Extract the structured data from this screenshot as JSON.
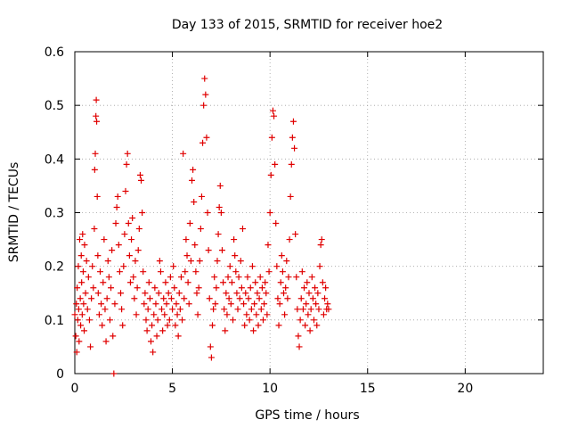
{
  "chart_data": {
    "type": "scatter",
    "title": "Day 133 of 2015, SRMTID for receiver hoe2",
    "xlabel": "GPS time / hours",
    "ylabel": "SRMTID / TECUs",
    "xlim": [
      0,
      24
    ],
    "ylim": [
      0,
      0.6
    ],
    "x_ticks": [
      "0",
      "5",
      "10",
      "15",
      "20"
    ],
    "y_ticks": [
      "0",
      "0.1",
      "0.2",
      "0.3",
      "0.4",
      "0.5",
      "0.6"
    ],
    "grid": true,
    "marker": "plus",
    "color": "#e00000",
    "series": [
      {
        "points": [
          [
            0.0,
            0.11
          ],
          [
            0.05,
            0.07
          ],
          [
            0.08,
            0.13
          ],
          [
            0.1,
            0.04
          ],
          [
            0.12,
            0.16
          ],
          [
            0.15,
            0.1
          ],
          [
            0.18,
            0.2
          ],
          [
            0.2,
            0.12
          ],
          [
            0.22,
            0.06
          ],
          [
            0.25,
            0.25
          ],
          [
            0.28,
            0.14
          ],
          [
            0.3,
            0.09
          ],
          [
            0.33,
            0.22
          ],
          [
            0.35,
            0.17
          ],
          [
            0.38,
            0.11
          ],
          [
            0.4,
            0.26
          ],
          [
            0.43,
            0.19
          ],
          [
            0.45,
            0.13
          ],
          [
            0.48,
            0.08
          ],
          [
            0.5,
            0.24
          ],
          [
            0.55,
            0.15
          ],
          [
            0.6,
            0.21
          ],
          [
            0.65,
            0.12
          ],
          [
            0.7,
            0.18
          ],
          [
            0.75,
            0.1
          ],
          [
            0.8,
            0.05
          ],
          [
            0.85,
            0.14
          ],
          [
            0.9,
            0.2
          ],
          [
            0.95,
            0.16
          ],
          [
            1.0,
            0.27
          ],
          [
            1.02,
            0.38
          ],
          [
            1.05,
            0.41
          ],
          [
            1.08,
            0.48
          ],
          [
            1.1,
            0.51
          ],
          [
            1.12,
            0.47
          ],
          [
            1.15,
            0.33
          ],
          [
            1.18,
            0.22
          ],
          [
            1.2,
            0.15
          ],
          [
            1.25,
            0.11
          ],
          [
            1.3,
            0.19
          ],
          [
            1.35,
            0.13
          ],
          [
            1.4,
            0.09
          ],
          [
            1.45,
            0.17
          ],
          [
            1.5,
            0.25
          ],
          [
            1.55,
            0.12
          ],
          [
            1.6,
            0.06
          ],
          [
            1.65,
            0.14
          ],
          [
            1.7,
            0.21
          ],
          [
            1.75,
            0.18
          ],
          [
            1.8,
            0.1
          ],
          [
            1.85,
            0.16
          ],
          [
            1.9,
            0.23
          ],
          [
            1.95,
            0.07
          ],
          [
            2.0,
            0.0
          ],
          [
            2.05,
            0.13
          ],
          [
            2.1,
            0.28
          ],
          [
            2.15,
            0.31
          ],
          [
            2.2,
            0.33
          ],
          [
            2.25,
            0.24
          ],
          [
            2.3,
            0.19
          ],
          [
            2.35,
            0.15
          ],
          [
            2.4,
            0.12
          ],
          [
            2.45,
            0.09
          ],
          [
            2.5,
            0.2
          ],
          [
            2.55,
            0.26
          ],
          [
            2.6,
            0.34
          ],
          [
            2.65,
            0.39
          ],
          [
            2.7,
            0.41
          ],
          [
            2.75,
            0.28
          ],
          [
            2.8,
            0.22
          ],
          [
            2.85,
            0.17
          ],
          [
            2.9,
            0.25
          ],
          [
            2.95,
            0.29
          ],
          [
            3.0,
            0.18
          ],
          [
            3.05,
            0.14
          ],
          [
            3.1,
            0.21
          ],
          [
            3.15,
            0.11
          ],
          [
            3.2,
            0.16
          ],
          [
            3.25,
            0.23
          ],
          [
            3.3,
            0.27
          ],
          [
            3.35,
            0.37
          ],
          [
            3.4,
            0.36
          ],
          [
            3.45,
            0.3
          ],
          [
            3.5,
            0.19
          ],
          [
            3.55,
            0.13
          ],
          [
            3.6,
            0.15
          ],
          [
            3.65,
            0.1
          ],
          [
            3.7,
            0.08
          ],
          [
            3.75,
            0.12
          ],
          [
            3.8,
            0.17
          ],
          [
            3.85,
            0.14
          ],
          [
            3.9,
            0.06
          ],
          [
            3.95,
            0.09
          ],
          [
            4.0,
            0.04
          ],
          [
            4.05,
            0.11
          ],
          [
            4.1,
            0.16
          ],
          [
            4.15,
            0.13
          ],
          [
            4.2,
            0.07
          ],
          [
            4.25,
            0.1
          ],
          [
            4.3,
            0.15
          ],
          [
            4.35,
            0.21
          ],
          [
            4.4,
            0.19
          ],
          [
            4.45,
            0.12
          ],
          [
            4.5,
            0.08
          ],
          [
            4.55,
            0.14
          ],
          [
            4.6,
            0.11
          ],
          [
            4.65,
            0.17
          ],
          [
            4.7,
            0.13
          ],
          [
            4.75,
            0.09
          ],
          [
            4.8,
            0.15
          ],
          [
            4.85,
            0.1
          ],
          [
            4.9,
            0.18
          ],
          [
            4.95,
            0.14
          ],
          [
            5.0,
            0.12
          ],
          [
            5.05,
            0.2
          ],
          [
            5.1,
            0.16
          ],
          [
            5.15,
            0.09
          ],
          [
            5.2,
            0.13
          ],
          [
            5.25,
            0.11
          ],
          [
            5.3,
            0.07
          ],
          [
            5.35,
            0.15
          ],
          [
            5.4,
            0.12
          ],
          [
            5.45,
            0.18
          ],
          [
            5.5,
            0.1
          ],
          [
            5.55,
            0.41
          ],
          [
            5.6,
            0.14
          ],
          [
            5.65,
            0.19
          ],
          [
            5.7,
            0.25
          ],
          [
            5.75,
            0.22
          ],
          [
            5.8,
            0.17
          ],
          [
            5.85,
            0.13
          ],
          [
            5.9,
            0.28
          ],
          [
            5.95,
            0.21
          ],
          [
            6.0,
            0.36
          ],
          [
            6.05,
            0.38
          ],
          [
            6.1,
            0.32
          ],
          [
            6.15,
            0.24
          ],
          [
            6.2,
            0.19
          ],
          [
            6.25,
            0.15
          ],
          [
            6.3,
            0.11
          ],
          [
            6.35,
            0.16
          ],
          [
            6.4,
            0.21
          ],
          [
            6.45,
            0.27
          ],
          [
            6.5,
            0.33
          ],
          [
            6.55,
            0.43
          ],
          [
            6.6,
            0.5
          ],
          [
            6.65,
            0.55
          ],
          [
            6.7,
            0.52
          ],
          [
            6.75,
            0.44
          ],
          [
            6.8,
            0.3
          ],
          [
            6.85,
            0.23
          ],
          [
            6.9,
            0.14
          ],
          [
            6.95,
            0.05
          ],
          [
            7.0,
            0.03
          ],
          [
            7.05,
            0.09
          ],
          [
            7.1,
            0.12
          ],
          [
            7.15,
            0.18
          ],
          [
            7.2,
            0.13
          ],
          [
            7.25,
            0.16
          ],
          [
            7.3,
            0.21
          ],
          [
            7.35,
            0.26
          ],
          [
            7.4,
            0.31
          ],
          [
            7.45,
            0.35
          ],
          [
            7.5,
            0.3
          ],
          [
            7.55,
            0.23
          ],
          [
            7.6,
            0.17
          ],
          [
            7.65,
            0.12
          ],
          [
            7.7,
            0.08
          ],
          [
            7.75,
            0.15
          ],
          [
            7.8,
            0.11
          ],
          [
            7.85,
            0.18
          ],
          [
            7.9,
            0.14
          ],
          [
            7.95,
            0.2
          ],
          [
            8.0,
            0.13
          ],
          [
            8.05,
            0.17
          ],
          [
            8.1,
            0.1
          ],
          [
            8.15,
            0.25
          ],
          [
            8.2,
            0.22
          ],
          [
            8.25,
            0.19
          ],
          [
            8.3,
            0.15
          ],
          [
            8.35,
            0.12
          ],
          [
            8.4,
            0.18
          ],
          [
            8.45,
            0.14
          ],
          [
            8.5,
            0.21
          ],
          [
            8.55,
            0.16
          ],
          [
            8.6,
            0.27
          ],
          [
            8.65,
            0.13
          ],
          [
            8.7,
            0.09
          ],
          [
            8.75,
            0.15
          ],
          [
            8.8,
            0.11
          ],
          [
            8.85,
            0.18
          ],
          [
            8.9,
            0.14
          ],
          [
            8.95,
            0.1
          ],
          [
            9.0,
            0.16
          ],
          [
            9.05,
            0.12
          ],
          [
            9.1,
            0.2
          ],
          [
            9.15,
            0.08
          ],
          [
            9.2,
            0.13
          ],
          [
            9.25,
            0.17
          ],
          [
            9.3,
            0.11
          ],
          [
            9.35,
            0.15
          ],
          [
            9.4,
            0.09
          ],
          [
            9.45,
            0.14
          ],
          [
            9.5,
            0.18
          ],
          [
            9.55,
            0.12
          ],
          [
            9.6,
            0.16
          ],
          [
            9.65,
            0.1
          ],
          [
            9.7,
            0.13
          ],
          [
            9.75,
            0.17
          ],
          [
            9.8,
            0.15
          ],
          [
            9.85,
            0.11
          ],
          [
            9.9,
            0.24
          ],
          [
            9.95,
            0.19
          ],
          [
            10.0,
            0.3
          ],
          [
            10.05,
            0.37
          ],
          [
            10.1,
            0.44
          ],
          [
            10.15,
            0.49
          ],
          [
            10.2,
            0.48
          ],
          [
            10.25,
            0.39
          ],
          [
            10.3,
            0.28
          ],
          [
            10.35,
            0.2
          ],
          [
            10.4,
            0.14
          ],
          [
            10.45,
            0.09
          ],
          [
            10.5,
            0.13
          ],
          [
            10.55,
            0.17
          ],
          [
            10.6,
            0.22
          ],
          [
            10.65,
            0.19
          ],
          [
            10.7,
            0.15
          ],
          [
            10.75,
            0.11
          ],
          [
            10.8,
            0.16
          ],
          [
            10.85,
            0.21
          ],
          [
            10.9,
            0.14
          ],
          [
            10.95,
            0.18
          ],
          [
            11.0,
            0.25
          ],
          [
            11.05,
            0.33
          ],
          [
            11.1,
            0.39
          ],
          [
            11.15,
            0.44
          ],
          [
            11.2,
            0.47
          ],
          [
            11.25,
            0.42
          ],
          [
            11.3,
            0.26
          ],
          [
            11.35,
            0.18
          ],
          [
            11.4,
            0.12
          ],
          [
            11.45,
            0.07
          ],
          [
            11.5,
            0.05
          ],
          [
            11.55,
            0.1
          ],
          [
            11.6,
            0.14
          ],
          [
            11.65,
            0.19
          ],
          [
            11.7,
            0.12
          ],
          [
            11.75,
            0.16
          ],
          [
            11.8,
            0.09
          ],
          [
            11.85,
            0.13
          ],
          [
            11.9,
            0.17
          ],
          [
            11.95,
            0.11
          ],
          [
            12.0,
            0.15
          ],
          [
            12.05,
            0.08
          ],
          [
            12.1,
            0.12
          ],
          [
            12.15,
            0.18
          ],
          [
            12.2,
            0.14
          ],
          [
            12.25,
            0.1
          ],
          [
            12.3,
            0.16
          ],
          [
            12.35,
            0.13
          ],
          [
            12.4,
            0.09
          ],
          [
            12.45,
            0.15
          ],
          [
            12.5,
            0.12
          ],
          [
            12.55,
            0.2
          ],
          [
            12.6,
            0.24
          ],
          [
            12.65,
            0.25
          ],
          [
            12.7,
            0.17
          ],
          [
            12.75,
            0.11
          ],
          [
            12.8,
            0.14
          ],
          [
            12.85,
            0.16
          ],
          [
            12.9,
            0.12
          ],
          [
            12.95,
            0.13
          ],
          [
            13.0,
            0.12
          ]
        ]
      }
    ]
  }
}
